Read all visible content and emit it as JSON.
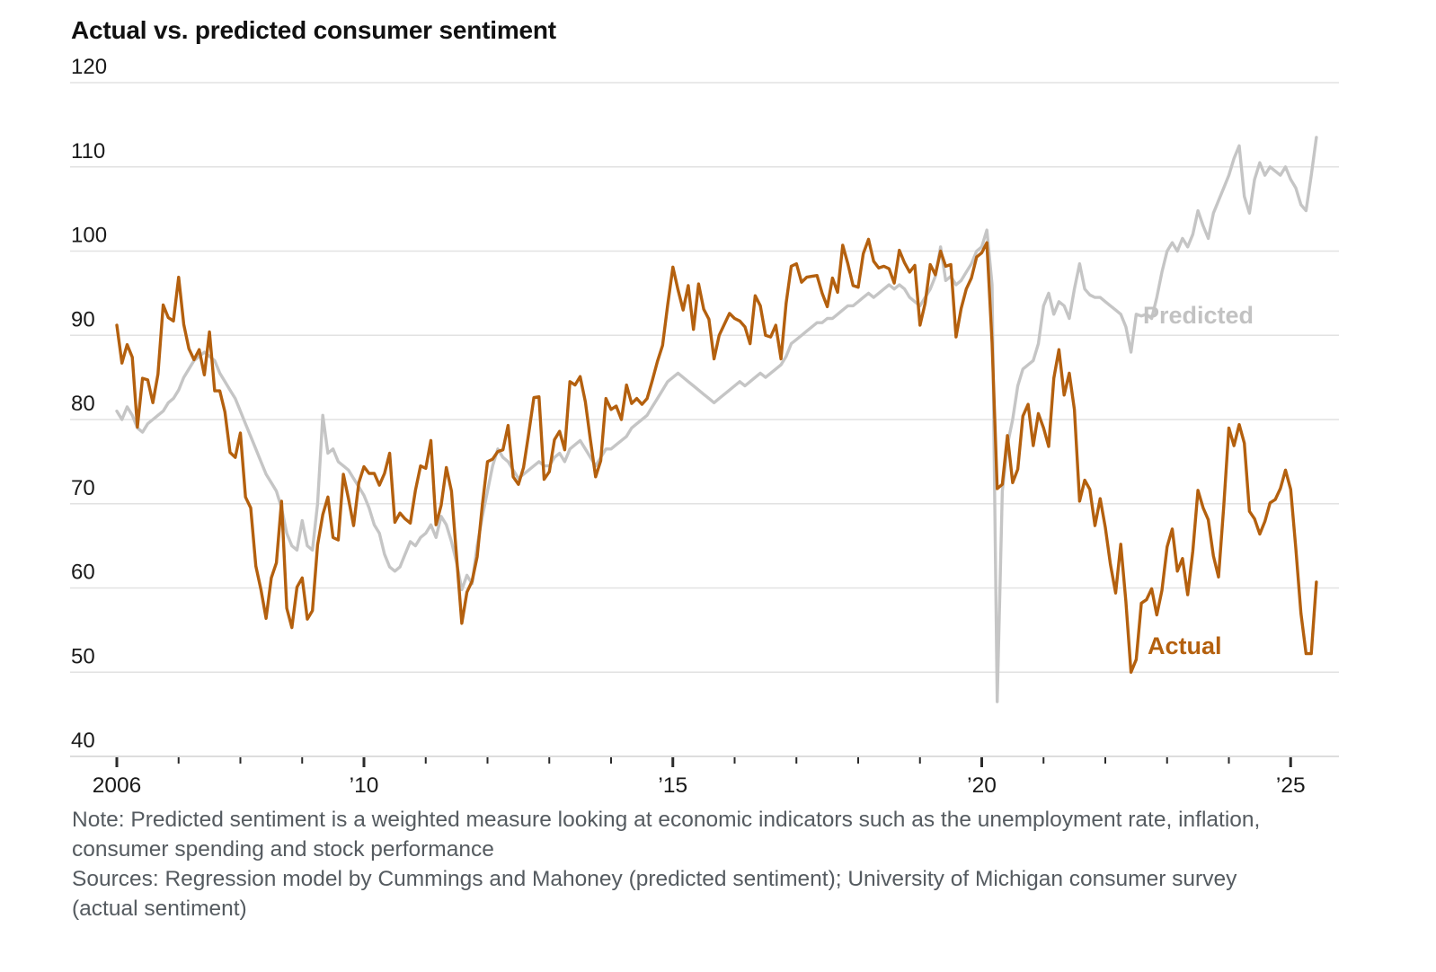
{
  "chart": {
    "title": "Actual vs. predicted consumer sentiment"
  },
  "notes": {
    "lines": [
      "Note: Predicted sentiment is a weighted measure looking at economic indicators such as the unemployment rate, inflation,",
      "consumer spending and stock performance",
      "Sources: Regression model by Cummings and Mahoney (predicted sentiment); University of Michigan consumer survey",
      "(actual sentiment)"
    ]
  },
  "chart_data": {
    "type": "line",
    "title": "Actual vs. predicted consumer sentiment",
    "frequency": "monthly",
    "x_start": "2006-01",
    "x_end": "2025-06",
    "ylim": [
      37,
      122
    ],
    "y_ticks": [
      120,
      110,
      100,
      90,
      80,
      70,
      60,
      50,
      40
    ],
    "x_tick_years": [
      2006,
      2007,
      2008,
      2009,
      2010,
      2011,
      2012,
      2013,
      2014,
      2015,
      2016,
      2017,
      2018,
      2019,
      2020,
      2021,
      2022,
      2023,
      2024,
      2025
    ],
    "x_tick_labels": {
      "2006": "2006",
      "2010": "’10",
      "2015": "’15",
      "2020": "’20",
      "2025": "’25"
    },
    "grid": "horizontal",
    "gridline_color": "#e2e2e2",
    "axisline_color": "#d2d2d2",
    "tick_color": "#2b2b2b",
    "axis_label_color": "#1a1a1a",
    "series": [
      {
        "name": "Predicted",
        "color": "#c5c5c5",
        "label_color": "#c2c2c2",
        "values": [
          81.0,
          80.0,
          81.5,
          80.5,
          79.0,
          78.5,
          79.5,
          80.0,
          80.5,
          81.0,
          82.0,
          82.5,
          83.5,
          85.0,
          86.0,
          87.0,
          87.5,
          88.0,
          87.5,
          87.0,
          85.5,
          84.5,
          83.5,
          82.5,
          81.0,
          79.5,
          78.0,
          76.5,
          75.0,
          73.5,
          72.5,
          71.5,
          69.5,
          66.5,
          65.0,
          64.5,
          68.0,
          65.0,
          64.5,
          70.0,
          80.5,
          76.0,
          76.5,
          75.0,
          74.5,
          74.0,
          73.0,
          72.0,
          71.0,
          69.5,
          67.5,
          66.5,
          64.0,
          62.5,
          62.0,
          62.5,
          64.0,
          65.5,
          65.0,
          66.0,
          66.5,
          67.5,
          66.0,
          68.5,
          67.5,
          65.5,
          63.0,
          59.8,
          61.5,
          60.5,
          65.0,
          68.5,
          71.5,
          74.5,
          76.5,
          75.5,
          75.0,
          74.0,
          73.0,
          73.5,
          74.0,
          74.5,
          75.0,
          74.5,
          74.5,
          75.5,
          76.0,
          75.0,
          76.5,
          77.0,
          77.5,
          76.5,
          75.5,
          74.5,
          75.5,
          76.5,
          76.5,
          77.0,
          77.5,
          78.0,
          79.0,
          79.5,
          80.0,
          80.5,
          81.5,
          82.5,
          83.5,
          84.5,
          85.0,
          85.5,
          85.0,
          84.5,
          84.0,
          83.5,
          83.0,
          82.5,
          82.0,
          82.5,
          83.0,
          83.5,
          84.0,
          84.5,
          84.0,
          84.5,
          85.0,
          85.5,
          85.0,
          85.5,
          86.0,
          86.5,
          87.5,
          89.0,
          89.5,
          90.0,
          90.5,
          91.0,
          91.5,
          91.5,
          92.0,
          92.0,
          92.5,
          93.0,
          93.5,
          93.5,
          94.0,
          94.5,
          95.0,
          94.5,
          95.0,
          95.5,
          96.0,
          95.5,
          96.0,
          95.5,
          94.5,
          94.0,
          93.5,
          94.5,
          95.5,
          97.0,
          100.5,
          96.5,
          97.0,
          96.0,
          96.5,
          97.5,
          98.5,
          100.0,
          100.5,
          102.5,
          96.0,
          46.5,
          71.5,
          77.0,
          80.0,
          84.0,
          86.0,
          86.5,
          87.0,
          89.0,
          93.5,
          95.0,
          92.5,
          94.0,
          93.5,
          92.0,
          95.5,
          98.5,
          95.5,
          94.8,
          94.5,
          94.5,
          94.0,
          93.5,
          93.0,
          92.5,
          91.0,
          88.0,
          92.5,
          92.3,
          92.5,
          92.0,
          94.5,
          97.5,
          100.0,
          101.0,
          100.0,
          101.5,
          100.5,
          102.0,
          104.8,
          103.0,
          101.5,
          104.5,
          106.0,
          107.5,
          109.0,
          111.0,
          112.5,
          106.5,
          104.5,
          108.5,
          110.5,
          109.0,
          110.0,
          109.5,
          109.0,
          110.0,
          108.5,
          107.5,
          105.5,
          104.8,
          109.0,
          113.5
        ]
      },
      {
        "name": "Actual",
        "color": "#b4600e",
        "label_color": "#b4600e",
        "values": [
          91.2,
          86.7,
          88.9,
          87.4,
          79.1,
          84.9,
          84.7,
          82.0,
          85.4,
          93.6,
          92.1,
          91.7,
          96.9,
          91.3,
          88.4,
          87.1,
          88.3,
          85.3,
          90.4,
          83.4,
          83.4,
          80.9,
          76.1,
          75.5,
          78.4,
          70.8,
          69.5,
          62.6,
          59.8,
          56.4,
          61.2,
          63.0,
          70.3,
          57.6,
          55.3,
          60.1,
          61.2,
          56.3,
          57.3,
          65.1,
          68.7,
          70.8,
          66.0,
          65.7,
          73.5,
          70.6,
          67.4,
          72.5,
          74.4,
          73.6,
          73.6,
          72.2,
          73.6,
          76.0,
          67.8,
          68.9,
          68.2,
          67.7,
          71.6,
          74.5,
          74.2,
          77.5,
          67.5,
          69.8,
          74.3,
          71.5,
          63.7,
          55.8,
          59.5,
          60.8,
          63.7,
          69.9,
          75.0,
          75.3,
          76.2,
          76.4,
          79.3,
          73.2,
          72.3,
          74.3,
          78.3,
          82.6,
          82.7,
          72.9,
          73.8,
          77.6,
          78.6,
          76.4,
          84.5,
          84.1,
          85.1,
          82.1,
          77.5,
          73.2,
          75.1,
          82.5,
          81.2,
          81.6,
          80.0,
          84.1,
          81.9,
          82.5,
          81.8,
          82.5,
          84.6,
          86.9,
          88.8,
          93.6,
          98.1,
          95.4,
          93.0,
          95.9,
          90.7,
          96.1,
          93.1,
          91.9,
          87.2,
          90.0,
          91.3,
          92.6,
          92.0,
          91.7,
          91.0,
          89.0,
          94.7,
          93.5,
          90.0,
          89.8,
          91.2,
          87.2,
          93.8,
          98.2,
          98.5,
          96.3,
          96.9,
          97.0,
          97.1,
          95.0,
          93.4,
          96.8,
          95.1,
          100.7,
          98.5,
          95.9,
          95.7,
          99.7,
          101.4,
          98.8,
          98.0,
          98.2,
          97.9,
          96.2,
          100.1,
          98.6,
          97.5,
          98.3,
          91.2,
          93.8,
          98.4,
          97.2,
          100.0,
          98.2,
          98.4,
          89.8,
          93.2,
          95.5,
          96.8,
          99.3,
          99.8,
          101.0,
          89.1,
          71.8,
          72.3,
          78.1,
          72.5,
          74.1,
          80.4,
          81.8,
          76.9,
          80.7,
          79.0,
          76.8,
          84.9,
          88.3,
          82.9,
          85.5,
          81.2,
          70.3,
          72.8,
          71.7,
          67.4,
          70.6,
          67.2,
          62.8,
          59.4,
          65.2,
          58.4,
          50.0,
          51.5,
          58.2,
          58.6,
          59.9,
          56.8,
          59.7,
          64.9,
          67.0,
          62.0,
          63.5,
          59.2,
          64.4,
          71.6,
          69.5,
          68.1,
          63.8,
          61.3,
          69.7,
          79.0,
          76.9,
          79.4,
          77.2,
          69.1,
          68.2,
          66.4,
          67.9,
          70.1,
          70.5,
          71.8,
          74.0,
          71.7,
          64.7,
          57.0,
          52.2,
          52.2,
          60.7
        ]
      }
    ],
    "series_annotations": [
      {
        "text": "Predicted",
        "series": "Predicted"
      },
      {
        "text": "Actual",
        "series": "Actual"
      }
    ]
  }
}
